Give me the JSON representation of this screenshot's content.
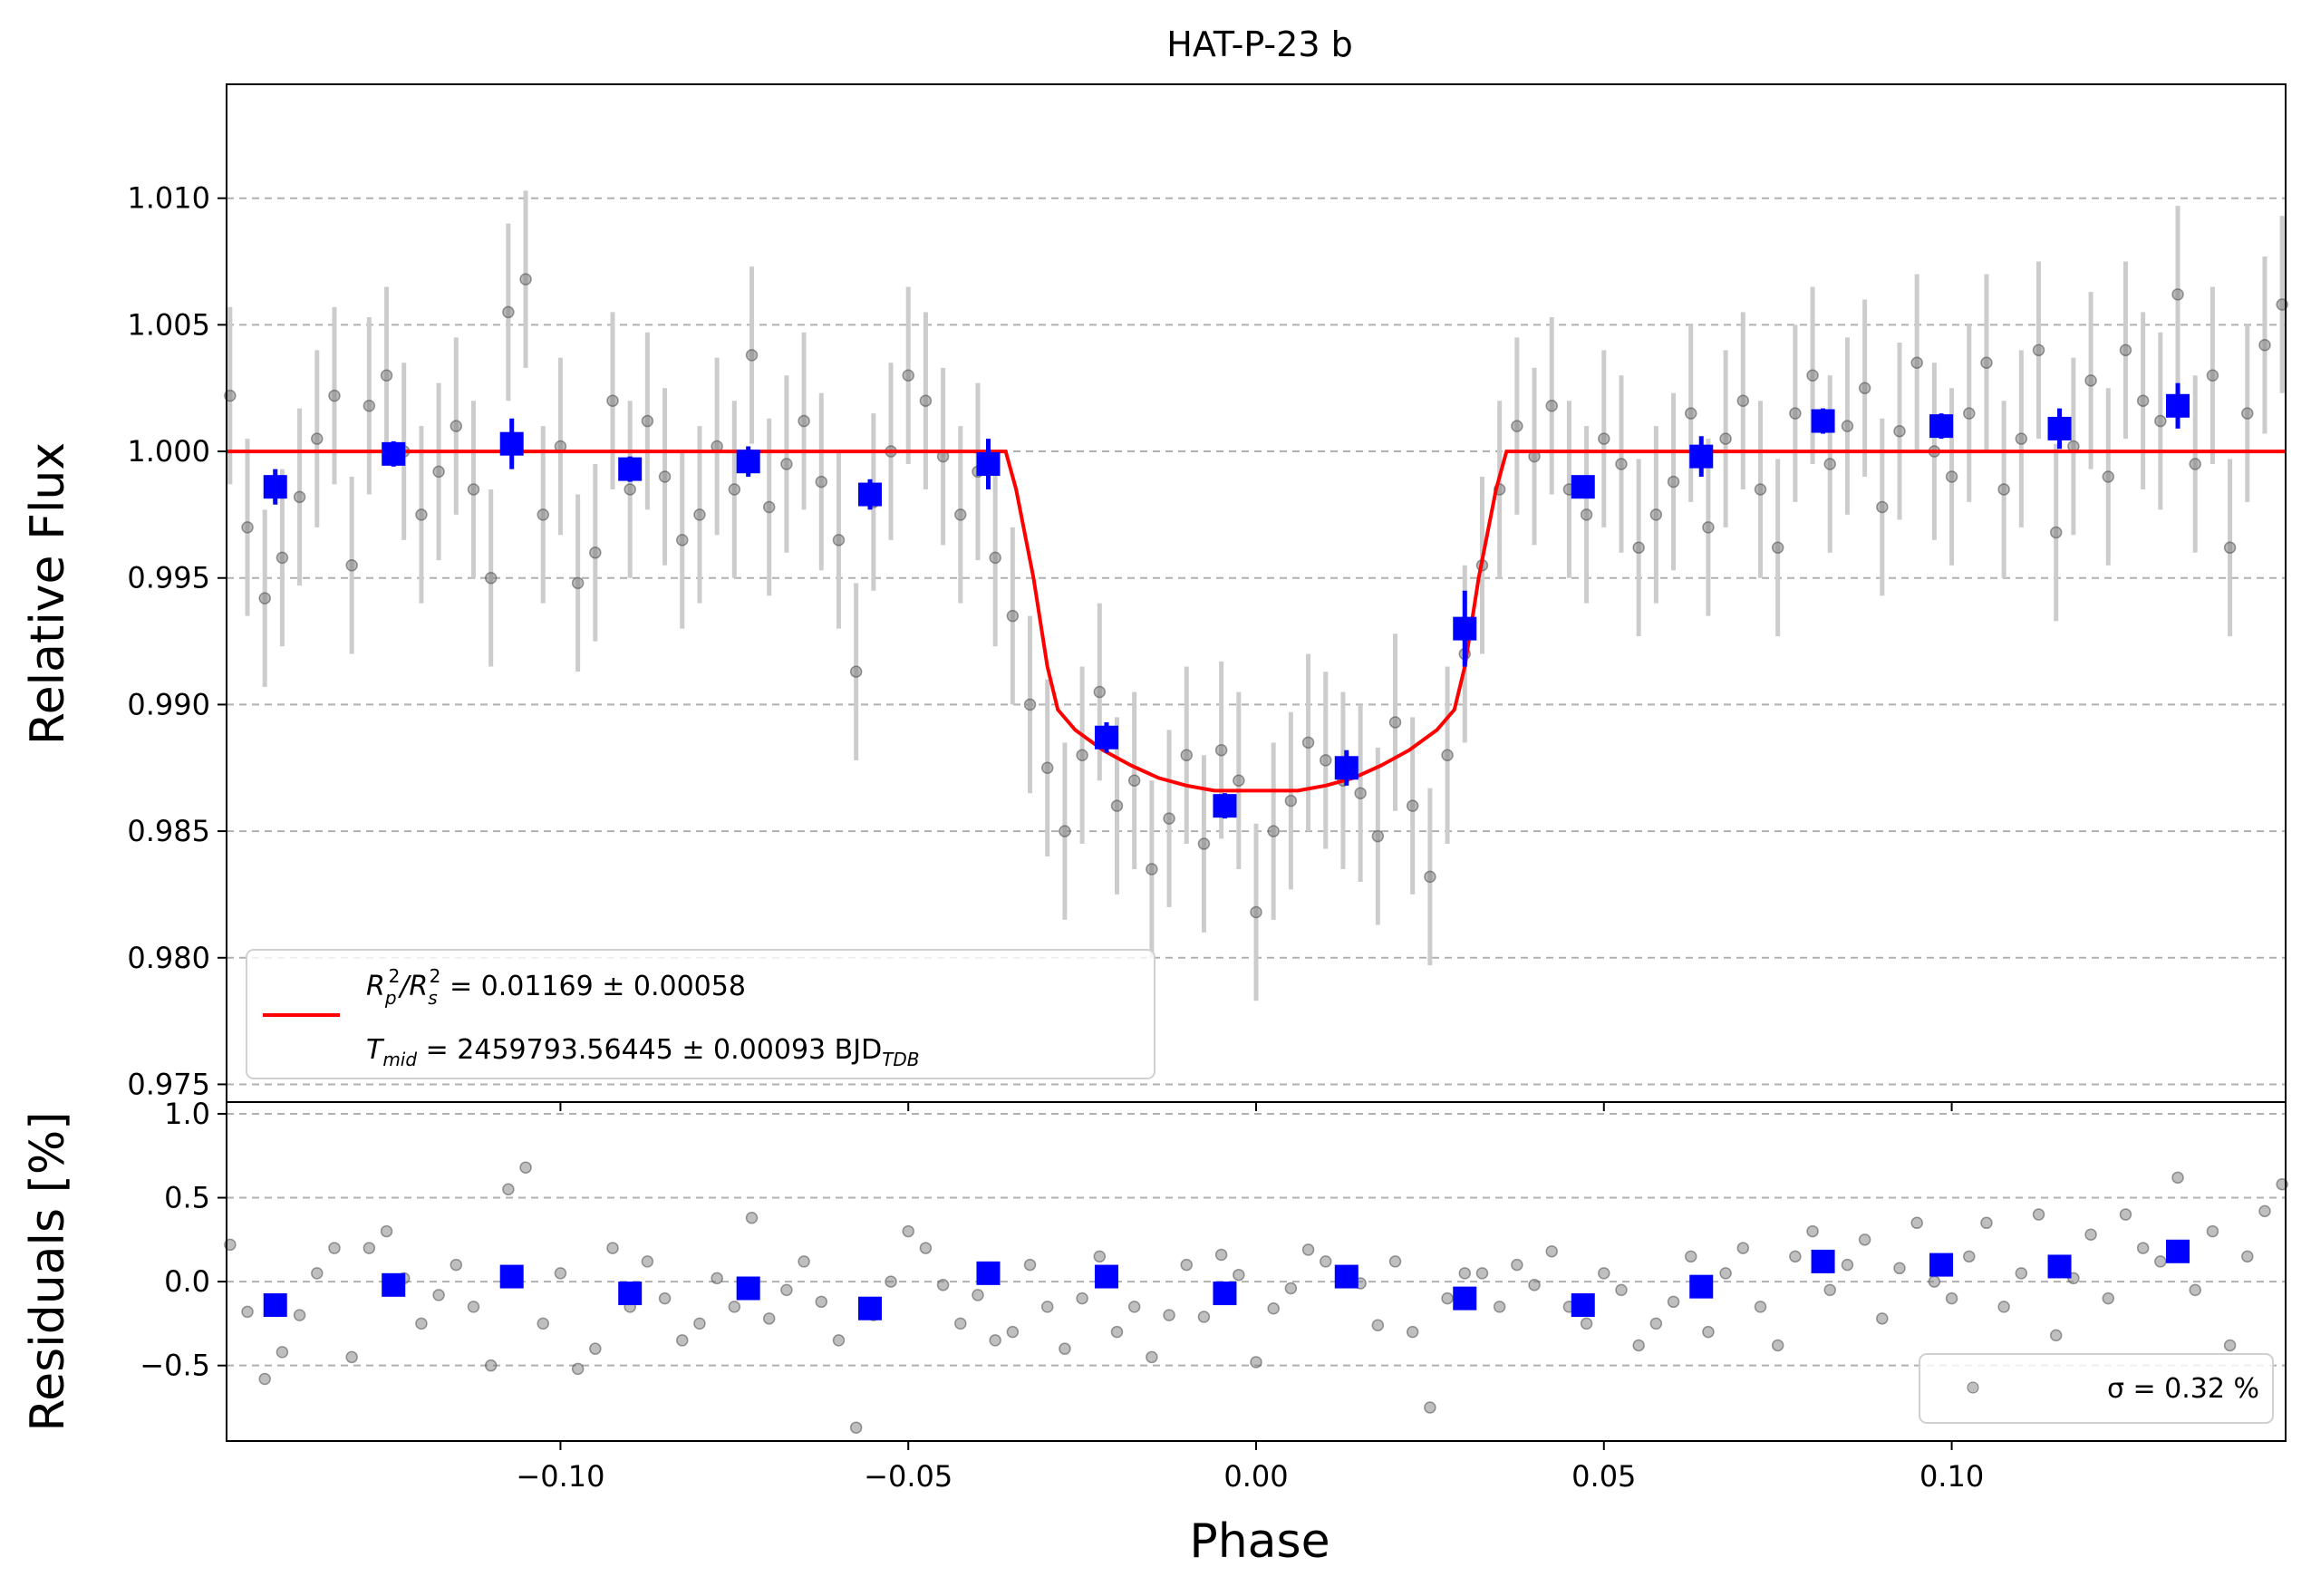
{
  "chart_data": [
    {
      "type": "scatter",
      "panel": "light-curve",
      "title": "HAT-P-23 b",
      "xlabel": "",
      "ylabel": "Relative Flux",
      "xlim": [
        -0.148,
        0.148
      ],
      "ylim": [
        0.9743,
        1.0145
      ],
      "xticks": [
        -0.1,
        -0.05,
        0.0,
        0.05,
        0.1
      ],
      "xtick_labels": [
        "−0.10",
        "−0.05",
        "0.00",
        "0.05",
        "0.10"
      ],
      "yticks": [
        0.975,
        0.98,
        0.985,
        0.99,
        0.995,
        1.0,
        1.005,
        1.01
      ],
      "ytick_labels": [
        "0.975",
        "0.980",
        "0.985",
        "0.990",
        "0.995",
        "1.000",
        "1.005",
        "1.010"
      ],
      "grid": "horizontal dashed",
      "legend_position": "lower-left",
      "colors": {
        "raw": "#808080",
        "errorbar": "#cccccc",
        "binned": "#0000ff",
        "model": "#ff0000"
      },
      "series": [
        {
          "kind": "raw-points-with-errorbars",
          "x": [
            -0.1475,
            -0.145,
            -0.1425,
            -0.14,
            -0.1375,
            -0.135,
            -0.1325,
            -0.13,
            -0.1275,
            -0.125,
            -0.1225,
            -0.12,
            -0.1175,
            -0.115,
            -0.1125,
            -0.11,
            -0.1075,
            -0.105,
            -0.1025,
            -0.1,
            -0.0975,
            -0.095,
            -0.0925,
            -0.09,
            -0.0875,
            -0.085,
            -0.0825,
            -0.08,
            -0.0775,
            -0.075,
            -0.0725,
            -0.07,
            -0.0675,
            -0.065,
            -0.0625,
            -0.06,
            -0.0575,
            -0.055,
            -0.0525,
            -0.05,
            -0.0475,
            -0.045,
            -0.0425,
            -0.04,
            -0.0375,
            -0.035,
            -0.0325,
            -0.03,
            -0.0275,
            -0.025,
            -0.0225,
            -0.02,
            -0.0175,
            -0.015,
            -0.0125,
            -0.01,
            -0.0075,
            -0.005,
            -0.0025,
            0.0,
            0.0025,
            0.005,
            0.0075,
            0.01,
            0.0125,
            0.015,
            0.0175,
            0.02,
            0.0225,
            0.025,
            0.0275,
            0.03,
            0.0325,
            0.035,
            0.0375,
            0.04,
            0.0425,
            0.045,
            0.0475,
            0.05,
            0.0525,
            0.055,
            0.0575,
            0.06,
            0.0625,
            0.065,
            0.0675,
            0.07,
            0.0725,
            0.075,
            0.0775,
            0.08,
            0.0825,
            0.085,
            0.0875,
            0.09,
            0.0925,
            0.095,
            0.0975,
            0.1,
            0.1025,
            0.105,
            0.1075,
            0.11,
            0.1125,
            0.115,
            0.1175,
            0.12,
            0.1225,
            0.125,
            0.1275,
            0.13,
            0.1325,
            0.135,
            0.1375,
            0.14,
            0.1425,
            0.145,
            0.1475
          ],
          "y": [
            1.0022,
            0.997,
            0.9942,
            0.9958,
            0.9982,
            1.0005,
            1.0022,
            0.9955,
            1.0018,
            1.003,
            1.0,
            0.9975,
            0.9992,
            1.001,
            0.9985,
            0.995,
            1.0055,
            1.0068,
            0.9975,
            1.0002,
            0.9948,
            0.996,
            1.002,
            0.9985,
            1.0012,
            0.999,
            0.9965,
            0.9975,
            1.0002,
            0.9985,
            1.0038,
            0.9978,
            0.9995,
            1.0012,
            0.9988,
            0.9965,
            0.9913,
            0.998,
            1.0,
            1.003,
            1.002,
            0.9998,
            0.9975,
            0.9992,
            0.9958,
            0.9935,
            0.99,
            0.9875,
            0.985,
            0.988,
            0.9905,
            0.986,
            0.987,
            0.9835,
            0.9855,
            0.988,
            0.9845,
            0.9882,
            0.987,
            0.9818,
            0.985,
            0.9862,
            0.9885,
            0.9878,
            0.987,
            0.9865,
            0.9848,
            0.9893,
            0.986,
            0.9832,
            0.988,
            0.992,
            0.9955,
            0.9985,
            1.001,
            0.9998,
            1.0018,
            0.9985,
            0.9975,
            1.0005,
            0.9995,
            0.9962,
            0.9975,
            0.9988,
            1.0015,
            0.997,
            1.0005,
            1.002,
            0.9985,
            0.9962,
            1.0015,
            1.003,
            0.9995,
            1.001,
            1.0025,
            0.9978,
            1.0008,
            1.0035,
            1.0,
            0.999,
            1.0015,
            1.0035,
            0.9985,
            1.0005,
            1.004,
            0.9968,
            1.0002,
            1.0028,
            0.999,
            1.004,
            1.002,
            1.0012,
            1.0062,
            0.9995,
            1.003,
            0.9962,
            1.0015,
            1.0042,
            1.0058
          ],
          "yerr": 0.0035
        },
        {
          "kind": "binned-points",
          "x": [
            -0.141,
            -0.124,
            -0.107,
            -0.09,
            -0.073,
            -0.0555,
            -0.0385,
            -0.0215,
            -0.0045,
            0.013,
            0.03,
            0.047,
            0.064,
            0.0815,
            0.0985,
            0.1155,
            0.1325
          ],
          "y": [
            0.9986,
            0.9999,
            1.0003,
            0.9993,
            0.9996,
            0.9983,
            0.9995,
            0.9887,
            0.986,
            0.9875,
            0.993,
            0.9986,
            0.9998,
            1.0012,
            1.001,
            1.0009,
            1.0018
          ],
          "yerr": [
            0.0007,
            0.0005,
            0.001,
            0.0005,
            0.0006,
            0.0006,
            0.001,
            0.0006,
            0.0005,
            0.0007,
            0.0015,
            0.0004,
            0.0008,
            0.0005,
            0.0005,
            0.0008,
            0.0009
          ]
        },
        {
          "kind": "model-curve",
          "x": [
            -0.148,
            -0.036,
            -0.0345,
            -0.032,
            -0.03,
            -0.0285,
            -0.026,
            -0.022,
            -0.018,
            -0.014,
            -0.01,
            -0.006,
            -0.002,
            0.002,
            0.006,
            0.01,
            0.014,
            0.018,
            0.022,
            0.026,
            0.0285,
            0.03,
            0.032,
            0.0345,
            0.036,
            0.148
          ],
          "y": [
            1.0,
            1.0,
            0.9985,
            0.995,
            0.9915,
            0.9898,
            0.989,
            0.9882,
            0.9876,
            0.9871,
            0.9868,
            0.9866,
            0.9866,
            0.9866,
            0.9866,
            0.9868,
            0.9871,
            0.9876,
            0.9882,
            0.989,
            0.9898,
            0.9915,
            0.995,
            0.9985,
            1.0,
            1.0
          ]
        }
      ],
      "legend": [
        {
          "main": "R",
          "sub1": "p",
          "sup1": "2",
          "mid": "/R",
          "sub2": "s",
          "sup2": "2",
          "value": " = 0.01169 ± 0.00058"
        },
        {
          "main": "T",
          "sub1": "mid",
          "value": " = 2459793.56445 ± 0.00093 BJD",
          "sub2": "TDB"
        }
      ]
    },
    {
      "type": "scatter",
      "panel": "residuals",
      "xlabel": "Phase",
      "ylabel": "Residuals [%]",
      "xlim": [
        -0.148,
        0.148
      ],
      "ylim": [
        -0.95,
        1.07
      ],
      "yticks": [
        -0.5,
        0.0,
        0.5,
        1.0
      ],
      "ytick_labels": [
        "−0.5",
        "0.0",
        "0.5",
        "1.0"
      ],
      "legend_position": "lower-right",
      "legend": {
        "label": "σ = 0.32 %"
      },
      "series": [
        {
          "kind": "raw-residuals",
          "values": [
            0.22,
            -0.18,
            -0.58,
            -0.42,
            -0.2,
            0.05,
            0.2,
            -0.45,
            0.2,
            0.3,
            0.02,
            -0.25,
            -0.08,
            0.1,
            -0.15,
            -0.5,
            0.55,
            0.68,
            -0.25,
            0.05,
            -0.52,
            -0.4,
            0.2,
            -0.15,
            0.12,
            -0.1,
            -0.35,
            -0.25,
            0.02,
            -0.15,
            0.38,
            -0.22,
            -0.05,
            0.12,
            -0.12,
            -0.35,
            -0.87,
            -0.2,
            0.0,
            0.3,
            0.2,
            -0.02,
            -0.25,
            -0.08,
            -0.35,
            -0.3,
            0.1,
            -0.15,
            -0.4,
            -0.1,
            0.15,
            -0.3,
            -0.15,
            -0.45,
            -0.2,
            0.1,
            -0.21,
            0.16,
            0.04,
            -0.48,
            -0.16,
            -0.04,
            0.19,
            0.12,
            0.04,
            -0.01,
            -0.26,
            0.12,
            -0.3,
            -0.75,
            -0.1,
            0.05,
            0.05,
            -0.15,
            0.1,
            -0.02,
            0.18,
            -0.15,
            -0.25,
            0.05,
            -0.05,
            -0.38,
            -0.25,
            -0.12,
            0.15,
            -0.3,
            0.05,
            0.2,
            -0.15,
            -0.38,
            0.15,
            0.3,
            -0.05,
            0.1,
            0.25,
            -0.22,
            0.08,
            0.35,
            0.0,
            -0.1,
            0.15,
            0.35,
            -0.15,
            0.05,
            0.4,
            -0.32,
            0.02,
            0.28,
            -0.1,
            0.4,
            0.2,
            0.12,
            0.62,
            -0.05,
            0.3,
            -0.38,
            0.15,
            0.42,
            0.58
          ],
          "note_x_shared_with_raw_points": true
        },
        {
          "kind": "binned-residuals",
          "values": [
            -0.14,
            -0.02,
            0.03,
            -0.07,
            -0.04,
            -0.16,
            0.05,
            0.03,
            -0.07,
            0.03,
            -0.1,
            -0.14,
            -0.03,
            0.12,
            0.1,
            0.09,
            0.18
          ]
        }
      ]
    }
  ]
}
